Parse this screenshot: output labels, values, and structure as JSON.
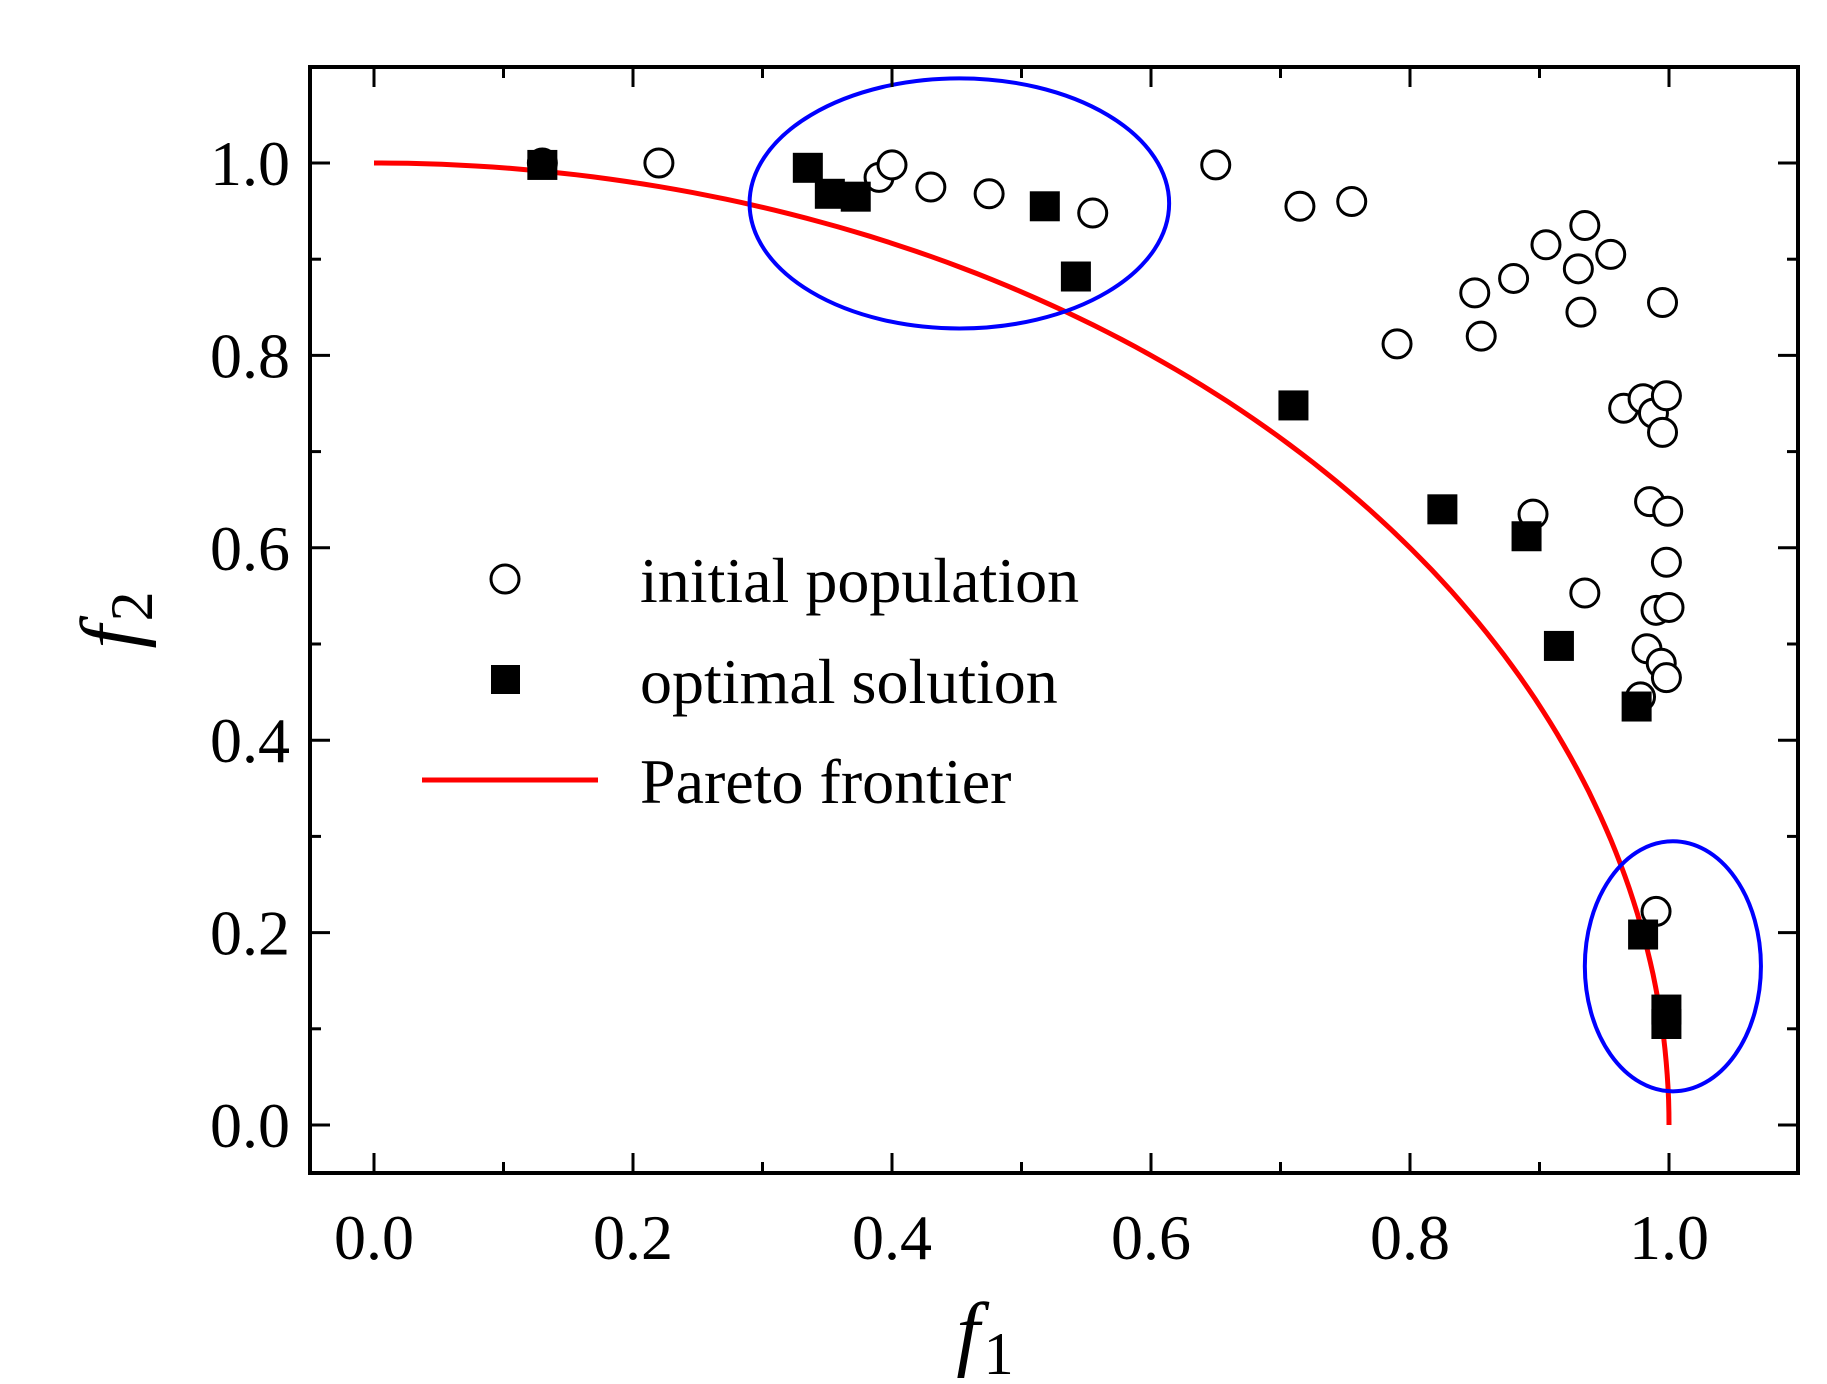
{
  "chart_data": {
    "type": "scatter",
    "title": "",
    "xlabel": "f",
    "xlabel_sub": "1",
    "ylabel": "f",
    "ylabel_sub": "2",
    "xlim": [
      -0.05,
      1.1
    ],
    "ylim": [
      -0.05,
      1.1
    ],
    "xticks": [
      "0.0",
      "0.2",
      "0.4",
      "0.6",
      "0.8",
      "1.0"
    ],
    "yticks": [
      "0.0",
      "0.2",
      "0.4",
      "0.6",
      "0.8",
      "1.0"
    ],
    "grid": false,
    "legend_position": "center-left",
    "colors": {
      "frontier": "#ff0000",
      "highlight": "#0000ff",
      "marker": "#000000"
    },
    "series": [
      {
        "name": "initial population",
        "marker": "open-circle",
        "points": [
          [
            0.13,
            1.0
          ],
          [
            0.22,
            1.0
          ],
          [
            0.39,
            0.985
          ],
          [
            0.4,
            0.998
          ],
          [
            0.43,
            0.975
          ],
          [
            0.475,
            0.968
          ],
          [
            0.555,
            0.948
          ],
          [
            0.65,
            0.998
          ],
          [
            0.715,
            0.955
          ],
          [
            0.755,
            0.96
          ],
          [
            0.79,
            0.812
          ],
          [
            0.85,
            0.865
          ],
          [
            0.855,
            0.82
          ],
          [
            0.88,
            0.88
          ],
          [
            0.905,
            0.915
          ],
          [
            0.93,
            0.89
          ],
          [
            0.932,
            0.845
          ],
          [
            0.935,
            0.935
          ],
          [
            0.955,
            0.905
          ],
          [
            0.995,
            0.855
          ],
          [
            0.965,
            0.745
          ],
          [
            0.98,
            0.755
          ],
          [
            0.988,
            0.74
          ],
          [
            0.995,
            0.72
          ],
          [
            0.998,
            0.758
          ],
          [
            0.895,
            0.635
          ],
          [
            0.985,
            0.648
          ],
          [
            0.999,
            0.638
          ],
          [
            0.935,
            0.553
          ],
          [
            0.99,
            0.535
          ],
          [
            1.0,
            0.538
          ],
          [
            0.998,
            0.585
          ],
          [
            0.983,
            0.495
          ],
          [
            0.994,
            0.48
          ],
          [
            0.998,
            0.465
          ],
          [
            0.978,
            0.445
          ],
          [
            0.99,
            0.222
          ]
        ]
      },
      {
        "name": "optimal solution",
        "marker": "filled-square",
        "points": [
          [
            0.13,
            0.998
          ],
          [
            0.335,
            0.995
          ],
          [
            0.352,
            0.968
          ],
          [
            0.372,
            0.965
          ],
          [
            0.518,
            0.955
          ],
          [
            0.542,
            0.882
          ],
          [
            0.71,
            0.748
          ],
          [
            0.825,
            0.64
          ],
          [
            0.89,
            0.612
          ],
          [
            0.915,
            0.498
          ],
          [
            0.975,
            0.435
          ],
          [
            0.98,
            0.198
          ],
          [
            0.998,
            0.12
          ],
          [
            0.998,
            0.105
          ]
        ]
      },
      {
        "name": "Pareto frontier",
        "type": "line",
        "curve": "quarter-ellipse",
        "from": [
          0.0,
          1.0
        ],
        "to": [
          1.0,
          0.0
        ]
      }
    ],
    "annotations": [
      {
        "shape": "ellipse",
        "cx": 0.452,
        "cy": 0.958,
        "rx": 0.162,
        "ry": 0.13
      },
      {
        "shape": "ellipse",
        "cx": 1.003,
        "cy": 0.165,
        "rx": 0.068,
        "ry": 0.13
      }
    ]
  }
}
